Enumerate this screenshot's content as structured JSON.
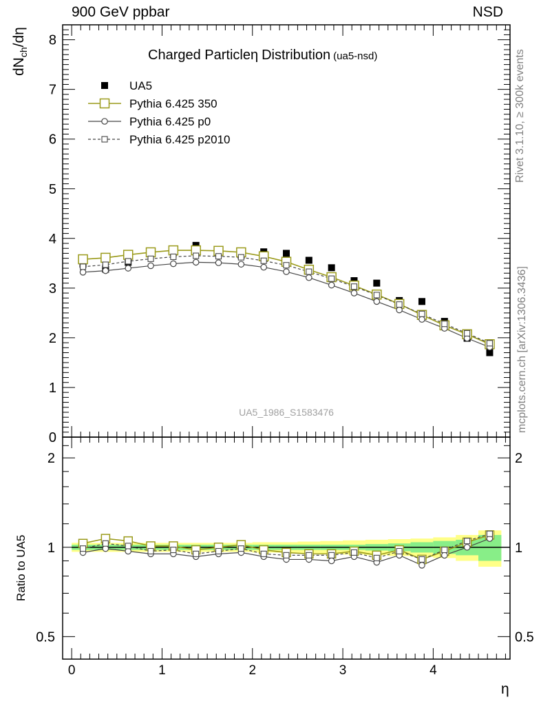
{
  "header": {
    "left": "900 GeV ppbar",
    "right": "NSD"
  },
  "side_labels": {
    "rivet": "Rivet 3.1.10, ≥ 300k events",
    "mcplots": "mcplots.cern.ch [arXiv:1306.3436]"
  },
  "chart_data": [
    {
      "type": "scatter",
      "panel": "main",
      "title": "Charged Particle",
      "title_symbol": "η",
      "title_rest": "Distribution",
      "title_tag": "(ua5-nsd)",
      "watermark": "UA5_1986_S1583476",
      "ylabel_main": "dN",
      "ylabel_sub": "ch",
      "ylabel_tail": "/dη",
      "xlabel": "η",
      "xlim": [
        -0.1,
        4.85
      ],
      "ylim": [
        0,
        8.3
      ],
      "yticks": [
        "0",
        "1",
        "2",
        "3",
        "4",
        "5",
        "6",
        "7",
        "8"
      ],
      "xticks": [
        "0",
        "1",
        "2",
        "3",
        "4"
      ],
      "grid": false,
      "legend_position": "top-left",
      "x": [
        0.125,
        0.375,
        0.625,
        0.875,
        1.125,
        1.375,
        1.625,
        1.875,
        2.125,
        2.375,
        2.625,
        2.875,
        3.125,
        3.375,
        3.625,
        3.875,
        4.125,
        4.375,
        4.625
      ],
      "series": [
        {
          "name": "UA5",
          "style": "data",
          "color": "#000000",
          "values": [
            3.48,
            3.38,
            3.52,
            3.7,
            3.72,
            3.86,
            3.76,
            3.66,
            3.73,
            3.7,
            3.56,
            3.41,
            3.15,
            3.1,
            2.75,
            2.73,
            2.33,
            1.99,
            1.7
          ]
        },
        {
          "name": "Pythia 6.425 350",
          "style": "square-solid",
          "color": "#9a9a1a",
          "values": [
            3.58,
            3.61,
            3.67,
            3.72,
            3.76,
            3.76,
            3.75,
            3.72,
            3.64,
            3.53,
            3.37,
            3.22,
            3.05,
            2.87,
            2.68,
            2.46,
            2.25,
            2.07,
            1.87
          ]
        },
        {
          "name": "Pythia 6.425 p0",
          "style": "circle-solid",
          "color": "#454545",
          "values": [
            3.32,
            3.35,
            3.4,
            3.45,
            3.49,
            3.52,
            3.51,
            3.48,
            3.42,
            3.33,
            3.21,
            3.06,
            2.9,
            2.73,
            2.56,
            2.37,
            2.19,
            1.99,
            1.81
          ]
        },
        {
          "name": "Pythia 6.425 p2010",
          "style": "square-dashed",
          "color": "#454545",
          "values": [
            3.43,
            3.47,
            3.54,
            3.59,
            3.63,
            3.65,
            3.64,
            3.62,
            3.55,
            3.46,
            3.33,
            3.19,
            3.03,
            2.86,
            2.67,
            2.48,
            2.28,
            2.09,
            1.89
          ]
        }
      ]
    },
    {
      "type": "line",
      "panel": "ratio",
      "ylabel": "Ratio to UA5",
      "xlabel": "η",
      "scale": "log",
      "ylim": [
        0.42,
        2.35
      ],
      "yticks": [
        "0.5",
        "1",
        "2"
      ],
      "xticks": [
        "0",
        "1",
        "2",
        "3",
        "4"
      ],
      "x": [
        0.125,
        0.375,
        0.625,
        0.875,
        1.125,
        1.375,
        1.625,
        1.875,
        2.125,
        2.375,
        2.625,
        2.875,
        3.125,
        3.375,
        3.625,
        3.875,
        4.125,
        4.375,
        4.625
      ],
      "band_total_halfwidth": [
        0.035,
        0.035,
        0.035,
        0.035,
        0.035,
        0.035,
        0.035,
        0.035,
        0.04,
        0.04,
        0.045,
        0.05,
        0.055,
        0.06,
        0.065,
        0.07,
        0.08,
        0.1,
        0.14
      ],
      "band_stat_halfwidth": [
        0.02,
        0.02,
        0.02,
        0.02,
        0.02,
        0.02,
        0.02,
        0.02,
        0.02,
        0.02,
        0.02,
        0.02,
        0.02,
        0.025,
        0.03,
        0.04,
        0.05,
        0.06,
        0.1
      ],
      "band_colors": {
        "total": "#ffff88",
        "stat": "#88ee88"
      },
      "series": [
        {
          "name": "Pythia 6.425 350",
          "values": [
            1.03,
            1.07,
            1.05,
            1.01,
            1.01,
            0.98,
            1.0,
            1.02,
            0.98,
            0.96,
            0.95,
            0.95,
            0.97,
            0.94,
            0.98,
            0.91,
            0.97,
            1.04,
            1.1
          ]
        },
        {
          "name": "Pythia 6.425 p0",
          "values": [
            0.96,
            0.99,
            0.97,
            0.95,
            0.95,
            0.93,
            0.95,
            0.96,
            0.93,
            0.91,
            0.91,
            0.9,
            0.93,
            0.89,
            0.94,
            0.87,
            0.94,
            1.0,
            1.07
          ]
        },
        {
          "name": "Pythia 6.425 p2010",
          "values": [
            0.99,
            1.03,
            1.01,
            0.97,
            0.98,
            0.95,
            0.97,
            0.99,
            0.95,
            0.94,
            0.94,
            0.94,
            0.96,
            0.92,
            0.97,
            0.91,
            0.98,
            1.05,
            1.11
          ]
        }
      ]
    }
  ]
}
